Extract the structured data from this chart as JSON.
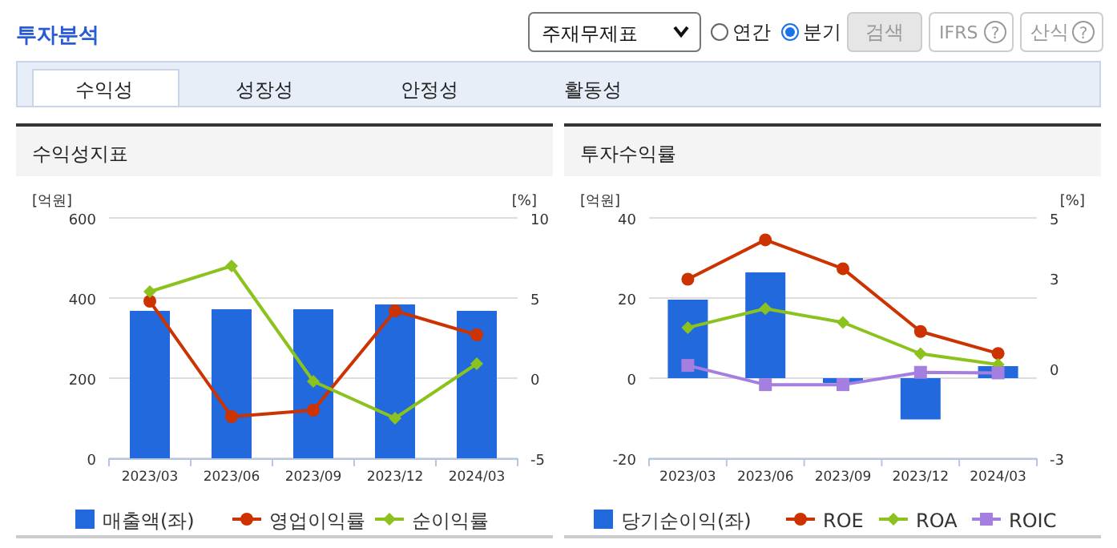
{
  "chart_data": [
    {
      "type": "other",
      "title": "투자분석",
      "annotations": [
        "주재무제표",
        "연간",
        "분기",
        "검색",
        "IFRS",
        "?",
        "산식",
        "?",
        "수익성",
        "성장성",
        "안정성",
        "활동성"
      ]
    },
    {
      "type": "bar",
      "title": "수익성지표",
      "ylabel": "[억원]",
      "y2label": "[%]",
      "categories": [
        "2023/03",
        "2023/06",
        "2023/09",
        "2023/12",
        "2024/03"
      ],
      "ylim": [
        0,
        600
      ],
      "yticks": [
        0,
        200,
        400,
        600
      ],
      "y2lim": [
        -5,
        10
      ],
      "y2ticks": [
        -5,
        0,
        5,
        10
      ],
      "grid": "y",
      "legend": "bottom",
      "series": [
        {
          "name": "매출액(좌)",
          "type": "bar",
          "color": "#2169dc",
          "values": [
            368,
            372,
            372,
            384,
            368
          ]
        },
        {
          "name": "영업이익률",
          "type": "line",
          "axis": "y2",
          "marker": "circle",
          "color": "#cc3300",
          "values": [
            4.8,
            -2.4,
            -2.0,
            4.2,
            2.7
          ]
        },
        {
          "name": "순이익률",
          "type": "line",
          "axis": "y2",
          "marker": "diamond",
          "color": "#8cc21e",
          "values": [
            5.4,
            7.0,
            -0.2,
            -2.5,
            0.9
          ]
        }
      ]
    },
    {
      "type": "bar",
      "title": "투자수익률",
      "ylabel": "[억원]",
      "y2label": "[%]",
      "categories": [
        "2023/03",
        "2023/06",
        "2023/09",
        "2023/12",
        "2024/03"
      ],
      "ylim": [
        -20,
        40
      ],
      "yticks": [
        -20,
        0,
        20,
        40
      ],
      "y2lim": [
        -3,
        5
      ],
      "y2ticks": [
        -3,
        0,
        3,
        5
      ],
      "grid": "y",
      "legend": "bottom",
      "series": [
        {
          "name": "당기순이익(좌)",
          "type": "bar",
          "color": "#2169dc",
          "values": [
            19.6,
            26.4,
            -1.2,
            -10.3,
            3.0
          ]
        },
        {
          "name": "ROE",
          "type": "line",
          "axis": "y2",
          "marker": "circle",
          "color": "#cc3300",
          "values": [
            2.96,
            4.27,
            3.31,
            1.22,
            0.49
          ]
        },
        {
          "name": "ROA",
          "type": "line",
          "axis": "y2",
          "marker": "diamond",
          "color": "#8cc21e",
          "values": [
            1.35,
            1.98,
            1.52,
            0.48,
            0.12
          ]
        },
        {
          "name": "ROIC",
          "type": "line",
          "axis": "y2",
          "marker": "square",
          "color": "#a57fdf",
          "values": [
            0.09,
            -0.55,
            -0.55,
            -0.14,
            -0.16
          ]
        }
      ]
    }
  ]
}
